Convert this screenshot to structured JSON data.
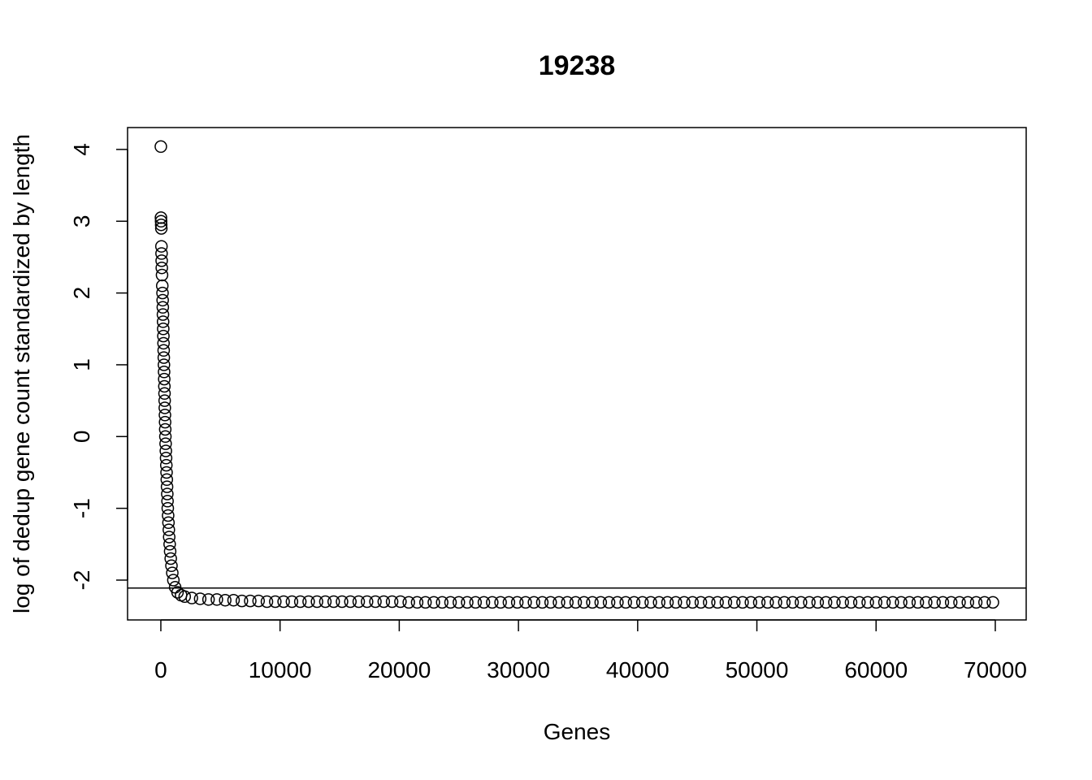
{
  "chart_data": {
    "type": "scatter",
    "title": "19238",
    "x_label": "Genes",
    "y_label": "log of dedup gene count standardized by length",
    "xlim": [
      -2792,
      72592
    ],
    "ylim": [
      -2.555,
      4.305
    ],
    "xticks": [
      0,
      10000,
      20000,
      30000,
      40000,
      50000,
      60000,
      70000
    ],
    "yticks": [
      -2,
      -1,
      0,
      1,
      2,
      3,
      4
    ],
    "hline": -2.11,
    "color": "#000000",
    "x": [
      0,
      10,
      20,
      30,
      40,
      50,
      60,
      70,
      80,
      100,
      120,
      140,
      152,
      164,
      176,
      188,
      200,
      212,
      224,
      236,
      248,
      260,
      272,
      284,
      296,
      308,
      320,
      332,
      344,
      356,
      368,
      380,
      400,
      420,
      440,
      460,
      480,
      500,
      520,
      540,
      560,
      580,
      610,
      640,
      670,
      700,
      740,
      780,
      830,
      890,
      960,
      1050,
      1200,
      1400,
      1700,
      2000,
      2600,
      3300,
      4000,
      4700,
      5400,
      6100,
      6800,
      7500,
      8200,
      8900,
      9600,
      10300,
      11000,
      11700,
      12400,
      13100,
      13800,
      14500,
      15200,
      15900,
      16600,
      17300,
      18000,
      18700,
      19400,
      20100,
      20800,
      21500,
      22200,
      22900,
      23600,
      24300,
      25000,
      25700,
      26400,
      27100,
      27800,
      28500,
      29200,
      29900,
      30600,
      31300,
      32000,
      32700,
      33400,
      34100,
      34800,
      35500,
      36200,
      36900,
      37600,
      38300,
      39000,
      39700,
      40400,
      41100,
      41800,
      42500,
      43200,
      43900,
      44600,
      45300,
      46000,
      46700,
      47400,
      48100,
      48800,
      49500,
      50200,
      50900,
      51600,
      52300,
      53000,
      53700,
      54400,
      55100,
      55800,
      56500,
      57200,
      57900,
      58600,
      59300,
      60000,
      60700,
      61400,
      62100,
      62800,
      63500,
      64200,
      64900,
      65600,
      66300,
      67000,
      67700,
      68400,
      69100,
      69800
    ],
    "y": [
      4.04,
      3.05,
      3.0,
      2.95,
      2.9,
      2.65,
      2.55,
      2.45,
      2.35,
      2.25,
      2.1,
      2.0,
      1.9,
      1.8,
      1.7,
      1.6,
      1.5,
      1.4,
      1.3,
      1.2,
      1.1,
      1.0,
      0.9,
      0.8,
      0.7,
      0.6,
      0.5,
      0.4,
      0.3,
      0.2,
      0.1,
      0.0,
      -0.1,
      -0.2,
      -0.3,
      -0.4,
      -0.5,
      -0.6,
      -0.7,
      -0.8,
      -0.9,
      -1.0,
      -1.1,
      -1.2,
      -1.3,
      -1.4,
      -1.5,
      -1.6,
      -1.7,
      -1.8,
      -1.9,
      -2.0,
      -2.1,
      -2.17,
      -2.21,
      -2.23,
      -2.25,
      -2.26,
      -2.27,
      -2.27,
      -2.28,
      -2.28,
      -2.29,
      -2.29,
      -2.29,
      -2.3,
      -2.3,
      -2.3,
      -2.3,
      -2.3,
      -2.3,
      -2.3,
      -2.3,
      -2.3,
      -2.3,
      -2.3,
      -2.3,
      -2.3,
      -2.3,
      -2.3,
      -2.3,
      -2.3,
      -2.31,
      -2.31,
      -2.31,
      -2.31,
      -2.31,
      -2.31,
      -2.31,
      -2.31,
      -2.31,
      -2.31,
      -2.31,
      -2.31,
      -2.31,
      -2.31,
      -2.31,
      -2.31,
      -2.31,
      -2.31,
      -2.31,
      -2.31,
      -2.31,
      -2.31,
      -2.31,
      -2.31,
      -2.31,
      -2.31,
      -2.31,
      -2.31,
      -2.31,
      -2.31,
      -2.31,
      -2.31,
      -2.31,
      -2.31,
      -2.31,
      -2.31,
      -2.31,
      -2.31,
      -2.31,
      -2.31,
      -2.31,
      -2.31,
      -2.31,
      -2.31,
      -2.31,
      -2.31,
      -2.31,
      -2.31,
      -2.31,
      -2.31,
      -2.31,
      -2.31,
      -2.31,
      -2.31,
      -2.31,
      -2.31,
      -2.31,
      -2.31,
      -2.31,
      -2.31,
      -2.31,
      -2.31,
      -2.31,
      -2.31,
      -2.31,
      -2.31,
      -2.31,
      -2.31,
      -2.31,
      -2.31,
      -2.31
    ]
  }
}
